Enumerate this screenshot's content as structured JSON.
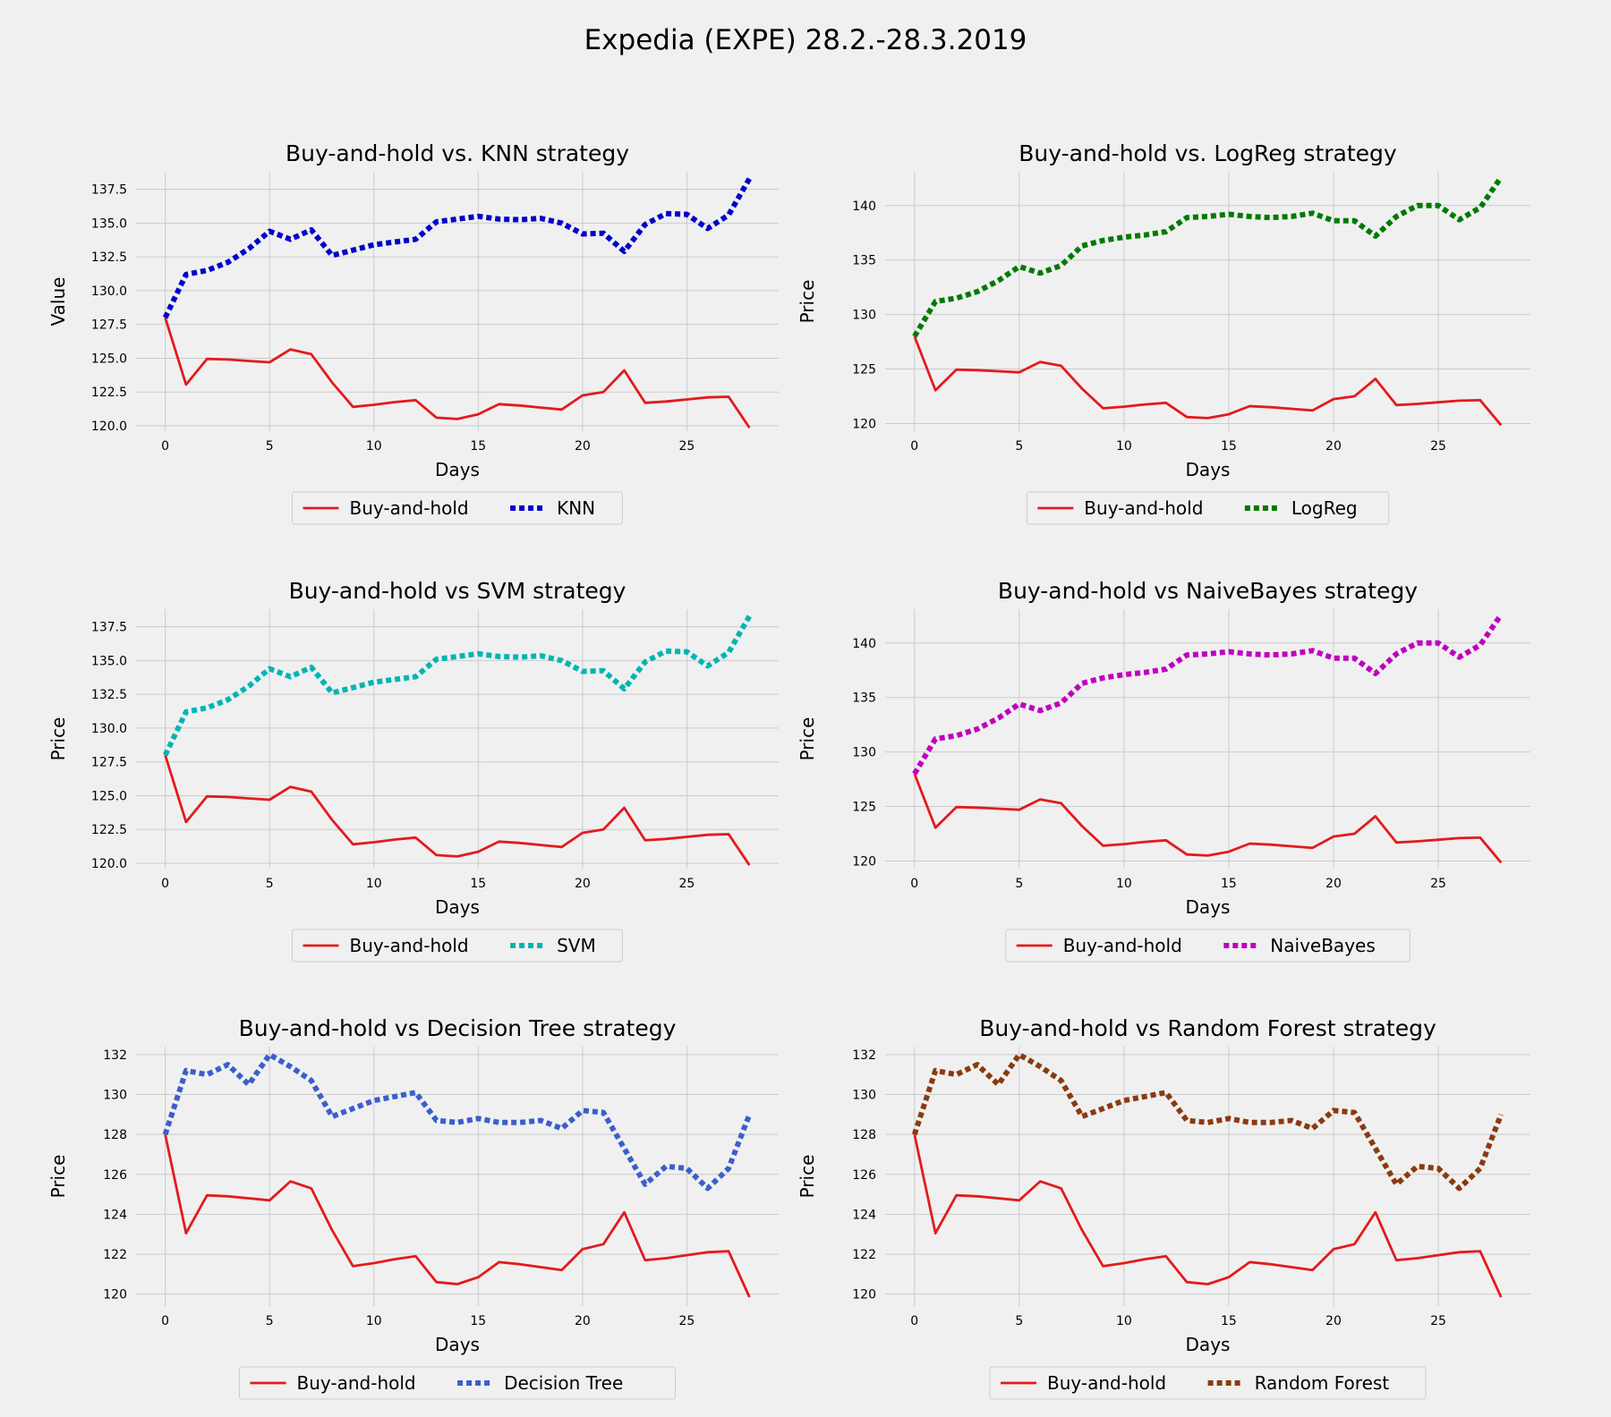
{
  "figure_title": "Expedia (EXPE) 28.2.-28.3.2019",
  "colors": {
    "background": "#f0f0f0",
    "grid": "#cbcbcb",
    "buy_and_hold": "#e41a1c"
  },
  "chart_data": [
    {
      "type": "line",
      "title": "Buy-and-hold vs. KNN strategy",
      "xlabel": "Days",
      "ylabel": "Value",
      "xlim": [
        -1.4,
        29.4
      ],
      "ylim": [
        119.6,
        138.8
      ],
      "xticks": [
        0,
        5,
        10,
        15,
        20,
        25
      ],
      "yticks": [
        120.0,
        122.5,
        125.0,
        127.5,
        130.0,
        132.5,
        135.0,
        137.5
      ],
      "ytick_decimals": 1,
      "grid": true,
      "legend_position": "below",
      "series": [
        {
          "name": "Buy-and-hold",
          "color": "#e41a1c",
          "style": "solid",
          "x": [
            0,
            1,
            2,
            3,
            4,
            5,
            6,
            7,
            8,
            9,
            10,
            11,
            12,
            13,
            14,
            15,
            16,
            17,
            18,
            19,
            20,
            21,
            22,
            23,
            24,
            25,
            26,
            27,
            28
          ],
          "values": [
            128.0,
            123.05,
            124.95,
            124.9,
            124.8,
            124.7,
            125.65,
            125.3,
            123.2,
            121.4,
            121.55,
            121.75,
            121.9,
            120.6,
            120.5,
            120.85,
            121.6,
            121.5,
            121.35,
            121.2,
            122.25,
            122.5,
            124.1,
            121.7,
            121.8,
            121.95,
            122.1,
            122.15,
            119.85
          ]
        },
        {
          "name": "KNN",
          "color": "#0000cc",
          "style": "dotted",
          "x": [
            0,
            1,
            2,
            3,
            4,
            5,
            6,
            7,
            8,
            9,
            10,
            11,
            12,
            13,
            14,
            15,
            16,
            17,
            18,
            19,
            20,
            21,
            22,
            23,
            24,
            25,
            26,
            27,
            28
          ],
          "values": [
            128.0,
            131.2,
            131.5,
            132.1,
            133.1,
            134.4,
            133.8,
            134.5,
            132.6,
            133.0,
            133.4,
            133.6,
            133.8,
            135.1,
            135.3,
            135.5,
            135.3,
            135.25,
            135.35,
            135.0,
            134.2,
            134.25,
            132.9,
            134.9,
            135.7,
            135.65,
            134.6,
            135.6,
            138.3
          ]
        }
      ]
    },
    {
      "type": "line",
      "title": "Buy-and-hold vs. LogReg strategy",
      "xlabel": "Days",
      "ylabel": "Price",
      "xlim": [
        -1.4,
        29.4
      ],
      "ylim": [
        119.3,
        143.1
      ],
      "xticks": [
        0,
        5,
        10,
        15,
        20,
        25
      ],
      "yticks": [
        120,
        125,
        130,
        135,
        140
      ],
      "ytick_decimals": 0,
      "grid": true,
      "legend_position": "below",
      "series": [
        {
          "name": "Buy-and-hold",
          "color": "#e41a1c",
          "style": "solid",
          "x": [
            0,
            1,
            2,
            3,
            4,
            5,
            6,
            7,
            8,
            9,
            10,
            11,
            12,
            13,
            14,
            15,
            16,
            17,
            18,
            19,
            20,
            21,
            22,
            23,
            24,
            25,
            26,
            27,
            28
          ],
          "values": [
            128.0,
            123.05,
            124.95,
            124.9,
            124.8,
            124.7,
            125.65,
            125.3,
            123.2,
            121.4,
            121.55,
            121.75,
            121.9,
            120.6,
            120.5,
            120.85,
            121.6,
            121.5,
            121.35,
            121.2,
            122.25,
            122.5,
            124.1,
            121.7,
            121.8,
            121.95,
            122.1,
            122.15,
            119.85
          ]
        },
        {
          "name": "LogReg",
          "color": "#007a00",
          "style": "dotted",
          "x": [
            0,
            1,
            2,
            3,
            4,
            5,
            6,
            7,
            8,
            9,
            10,
            11,
            12,
            13,
            14,
            15,
            16,
            17,
            18,
            19,
            20,
            21,
            22,
            23,
            24,
            25,
            26,
            27,
            28
          ],
          "values": [
            128.0,
            131.2,
            131.5,
            132.1,
            133.1,
            134.4,
            133.8,
            134.5,
            136.3,
            136.8,
            137.1,
            137.3,
            137.6,
            138.9,
            139.0,
            139.2,
            139.0,
            138.9,
            139.0,
            139.3,
            138.6,
            138.6,
            137.2,
            139.0,
            140.0,
            140.0,
            138.7,
            139.8,
            142.6
          ]
        }
      ]
    },
    {
      "type": "line",
      "title": "Buy-and-hold vs SVM strategy",
      "xlabel": "Days",
      "ylabel": "Price",
      "xlim": [
        -1.4,
        29.4
      ],
      "ylim": [
        119.6,
        138.8
      ],
      "xticks": [
        0,
        5,
        10,
        15,
        20,
        25
      ],
      "yticks": [
        120.0,
        122.5,
        125.0,
        127.5,
        130.0,
        132.5,
        135.0,
        137.5
      ],
      "ytick_decimals": 1,
      "grid": true,
      "legend_position": "below",
      "series": [
        {
          "name": "Buy-and-hold",
          "color": "#e41a1c",
          "style": "solid",
          "x": [
            0,
            1,
            2,
            3,
            4,
            5,
            6,
            7,
            8,
            9,
            10,
            11,
            12,
            13,
            14,
            15,
            16,
            17,
            18,
            19,
            20,
            21,
            22,
            23,
            24,
            25,
            26,
            27,
            28
          ],
          "values": [
            128.0,
            123.05,
            124.95,
            124.9,
            124.8,
            124.7,
            125.65,
            125.3,
            123.2,
            121.4,
            121.55,
            121.75,
            121.9,
            120.6,
            120.5,
            120.85,
            121.6,
            121.5,
            121.35,
            121.2,
            122.25,
            122.5,
            124.1,
            121.7,
            121.8,
            121.95,
            122.1,
            122.15,
            119.85
          ]
        },
        {
          "name": "SVM",
          "color": "#00b5b5",
          "style": "dotted",
          "x": [
            0,
            1,
            2,
            3,
            4,
            5,
            6,
            7,
            8,
            9,
            10,
            11,
            12,
            13,
            14,
            15,
            16,
            17,
            18,
            19,
            20,
            21,
            22,
            23,
            24,
            25,
            26,
            27,
            28
          ],
          "values": [
            128.0,
            131.2,
            131.5,
            132.1,
            133.1,
            134.4,
            133.8,
            134.5,
            132.6,
            133.0,
            133.4,
            133.6,
            133.8,
            135.1,
            135.3,
            135.5,
            135.3,
            135.25,
            135.35,
            135.0,
            134.2,
            134.25,
            132.9,
            134.9,
            135.7,
            135.65,
            134.6,
            135.6,
            138.3
          ]
        }
      ]
    },
    {
      "type": "line",
      "title": "Buy-and-hold vs NaiveBayes strategy",
      "xlabel": "Days",
      "ylabel": "Price",
      "xlim": [
        -1.4,
        29.4
      ],
      "ylim": [
        119.3,
        143.1
      ],
      "xticks": [
        0,
        5,
        10,
        15,
        20,
        25
      ],
      "yticks": [
        120,
        125,
        130,
        135,
        140
      ],
      "ytick_decimals": 0,
      "grid": true,
      "legend_position": "below",
      "series": [
        {
          "name": "Buy-and-hold",
          "color": "#e41a1c",
          "style": "solid",
          "x": [
            0,
            1,
            2,
            3,
            4,
            5,
            6,
            7,
            8,
            9,
            10,
            11,
            12,
            13,
            14,
            15,
            16,
            17,
            18,
            19,
            20,
            21,
            22,
            23,
            24,
            25,
            26,
            27,
            28
          ],
          "values": [
            128.0,
            123.05,
            124.95,
            124.9,
            124.8,
            124.7,
            125.65,
            125.3,
            123.2,
            121.4,
            121.55,
            121.75,
            121.9,
            120.6,
            120.5,
            120.85,
            121.6,
            121.5,
            121.35,
            121.2,
            122.25,
            122.5,
            124.1,
            121.7,
            121.8,
            121.95,
            122.1,
            122.15,
            119.85
          ]
        },
        {
          "name": "NaiveBayes",
          "color": "#c000c0",
          "style": "dotted",
          "x": [
            0,
            1,
            2,
            3,
            4,
            5,
            6,
            7,
            8,
            9,
            10,
            11,
            12,
            13,
            14,
            15,
            16,
            17,
            18,
            19,
            20,
            21,
            22,
            23,
            24,
            25,
            26,
            27,
            28
          ],
          "values": [
            128.0,
            131.2,
            131.5,
            132.1,
            133.1,
            134.4,
            133.8,
            134.5,
            136.3,
            136.8,
            137.1,
            137.3,
            137.6,
            138.9,
            139.0,
            139.2,
            139.0,
            138.9,
            139.0,
            139.3,
            138.6,
            138.6,
            137.2,
            139.0,
            140.0,
            140.0,
            138.7,
            139.8,
            142.6
          ]
        }
      ]
    },
    {
      "type": "line",
      "title": "Buy-and-hold vs Decision Tree strategy",
      "xlabel": "Days",
      "ylabel": "Price",
      "xlim": [
        -1.4,
        29.4
      ],
      "ylim": [
        119.4,
        132.4
      ],
      "xticks": [
        0,
        5,
        10,
        15,
        20,
        25
      ],
      "yticks": [
        120,
        122,
        124,
        126,
        128,
        130,
        132
      ],
      "ytick_decimals": 0,
      "grid": true,
      "legend_position": "below",
      "series": [
        {
          "name": "Buy-and-hold",
          "color": "#e41a1c",
          "style": "solid",
          "x": [
            0,
            1,
            2,
            3,
            4,
            5,
            6,
            7,
            8,
            9,
            10,
            11,
            12,
            13,
            14,
            15,
            16,
            17,
            18,
            19,
            20,
            21,
            22,
            23,
            24,
            25,
            26,
            27,
            28
          ],
          "values": [
            128.0,
            123.05,
            124.95,
            124.9,
            124.8,
            124.7,
            125.65,
            125.3,
            123.2,
            121.4,
            121.55,
            121.75,
            121.9,
            120.6,
            120.5,
            120.85,
            121.6,
            121.5,
            121.35,
            121.2,
            122.25,
            122.5,
            124.1,
            121.7,
            121.8,
            121.95,
            122.1,
            122.15,
            119.85
          ]
        },
        {
          "name": "Decision Tree",
          "color": "#3a5fcd",
          "style": "dotted",
          "x": [
            0,
            1,
            2,
            3,
            4,
            5,
            6,
            7,
            8,
            9,
            10,
            11,
            12,
            13,
            14,
            15,
            16,
            17,
            18,
            19,
            20,
            21,
            22,
            23,
            24,
            25,
            26,
            27,
            28
          ],
          "values": [
            128.0,
            131.2,
            131.0,
            131.5,
            130.5,
            132.0,
            131.4,
            130.7,
            128.9,
            129.3,
            129.7,
            129.9,
            130.1,
            128.7,
            128.6,
            128.8,
            128.6,
            128.6,
            128.7,
            128.3,
            129.2,
            129.1,
            127.3,
            125.5,
            126.4,
            126.3,
            125.3,
            126.3,
            129.0
          ]
        }
      ]
    },
    {
      "type": "line",
      "title": "Buy-and-hold vs Random Forest strategy",
      "xlabel": "Days",
      "ylabel": "Price",
      "xlim": [
        -1.4,
        29.4
      ],
      "ylim": [
        119.4,
        132.4
      ],
      "xticks": [
        0,
        5,
        10,
        15,
        20,
        25
      ],
      "yticks": [
        120,
        122,
        124,
        126,
        128,
        130,
        132
      ],
      "ytick_decimals": 0,
      "grid": true,
      "legend_position": "below",
      "series": [
        {
          "name": "Buy-and-hold",
          "color": "#e41a1c",
          "style": "solid",
          "x": [
            0,
            1,
            2,
            3,
            4,
            5,
            6,
            7,
            8,
            9,
            10,
            11,
            12,
            13,
            14,
            15,
            16,
            17,
            18,
            19,
            20,
            21,
            22,
            23,
            24,
            25,
            26,
            27,
            28
          ],
          "values": [
            128.0,
            123.05,
            124.95,
            124.9,
            124.8,
            124.7,
            125.65,
            125.3,
            123.2,
            121.4,
            121.55,
            121.75,
            121.9,
            120.6,
            120.5,
            120.85,
            121.6,
            121.5,
            121.35,
            121.2,
            122.25,
            122.5,
            124.1,
            121.7,
            121.8,
            121.95,
            122.1,
            122.15,
            119.85
          ]
        },
        {
          "name": "Random Forest",
          "color": "#8b3a0f",
          "style": "dotted",
          "x": [
            0,
            1,
            2,
            3,
            4,
            5,
            6,
            7,
            8,
            9,
            10,
            11,
            12,
            13,
            14,
            15,
            16,
            17,
            18,
            19,
            20,
            21,
            22,
            23,
            24,
            25,
            26,
            27,
            28
          ],
          "values": [
            128.0,
            131.2,
            131.0,
            131.5,
            130.5,
            132.0,
            131.4,
            130.7,
            128.9,
            129.3,
            129.7,
            129.9,
            130.1,
            128.7,
            128.6,
            128.8,
            128.6,
            128.6,
            128.7,
            128.3,
            129.2,
            129.1,
            127.3,
            125.5,
            126.4,
            126.3,
            125.3,
            126.3,
            129.0
          ]
        }
      ]
    }
  ]
}
